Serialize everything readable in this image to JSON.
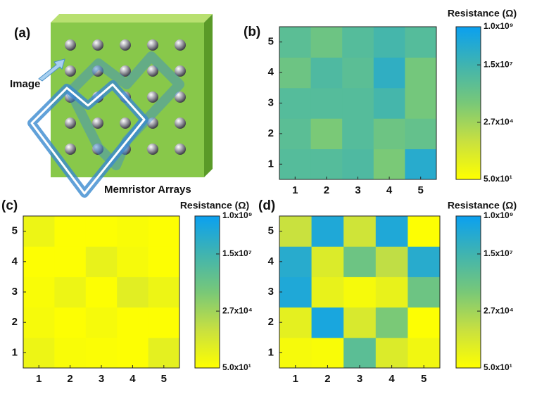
{
  "illustration": {
    "label": "(a)",
    "image_label": "Image",
    "array_label": "Memristor Arrays"
  },
  "chart_data": [
    {
      "type": "heatmap",
      "label": "(b)",
      "x": [
        1,
        2,
        3,
        4,
        5
      ],
      "y": [
        1,
        2,
        3,
        4,
        5
      ],
      "values": [
        [
          3000000,
          3000000,
          5000000,
          200000,
          100000000
        ],
        [
          2000000,
          200000,
          3000000,
          500000,
          1000000
        ],
        [
          3000000,
          3000000,
          3000000,
          10000000,
          300000
        ],
        [
          500000,
          5000000,
          2000000,
          50000000,
          300000
        ],
        [
          2000000,
          500000,
          3000000,
          10000000,
          3000000
        ]
      ],
      "colorbar_label": "Resistance (Ω)",
      "log": true,
      "clim": [
        50,
        1000000000
      ],
      "cticks": [
        {
          "value": 50,
          "label": "5.0x10¹"
        },
        {
          "value": 27000,
          "label": "2.7x10⁴"
        },
        {
          "value": 15000000,
          "label": "1.5x10⁷"
        },
        {
          "value": 1000000000,
          "label": "1.0x10⁹"
        }
      ],
      "colormap": [
        "#ffff00",
        "#c8e040",
        "#78c878",
        "#40b4b0",
        "#0aa0f0"
      ]
    },
    {
      "type": "heatmap",
      "label": "(c)",
      "x": [
        1,
        2,
        3,
        4,
        5
      ],
      "y": [
        1,
        2,
        3,
        4,
        5
      ],
      "values": [
        [
          200,
          80,
          70,
          60,
          400
        ],
        [
          100,
          60,
          100,
          60,
          60
        ],
        [
          80,
          200,
          60,
          500,
          200
        ],
        [
          60,
          60,
          300,
          100,
          60
        ],
        [
          200,
          60,
          60,
          80,
          60
        ]
      ],
      "colorbar_label": "Resistance (Ω)",
      "log": true,
      "clim": [
        50,
        1000000000
      ],
      "cticks": [
        {
          "value": 50,
          "label": "5.0x10¹"
        },
        {
          "value": 27000,
          "label": "2.7x10⁴"
        },
        {
          "value": 15000000,
          "label": "1.5x10⁷"
        },
        {
          "value": 1000000000,
          "label": "1.0x10⁹"
        }
      ],
      "colormap": [
        "#ffff00",
        "#c8e040",
        "#78c878",
        "#40b4b0",
        "#0aa0f0"
      ]
    },
    {
      "type": "heatmap",
      "label": "(d)",
      "x": [
        1,
        2,
        3,
        4,
        5
      ],
      "y": [
        1,
        2,
        3,
        4,
        5
      ],
      "values": [
        [
          100,
          80,
          2000000,
          800,
          150
        ],
        [
          400,
          300000000,
          1000,
          200000,
          60
        ],
        [
          200000000,
          300,
          100,
          300,
          500000
        ],
        [
          100000000,
          800,
          500000,
          5000,
          100000000
        ],
        [
          3000,
          200000000,
          2000,
          200000000,
          60
        ]
      ],
      "colorbar_label": "Resistance (Ω)",
      "log": true,
      "clim": [
        50,
        1000000000
      ],
      "cticks": [
        {
          "value": 50,
          "label": "5.0x10¹"
        },
        {
          "value": 27000,
          "label": "2.7x10⁴"
        },
        {
          "value": 15000000,
          "label": "1.5x10⁷"
        },
        {
          "value": 1000000000,
          "label": "1.0x10⁹"
        }
      ],
      "colormap": [
        "#ffff00",
        "#c8e040",
        "#78c878",
        "#40b4b0",
        "#0aa0f0"
      ]
    }
  ]
}
